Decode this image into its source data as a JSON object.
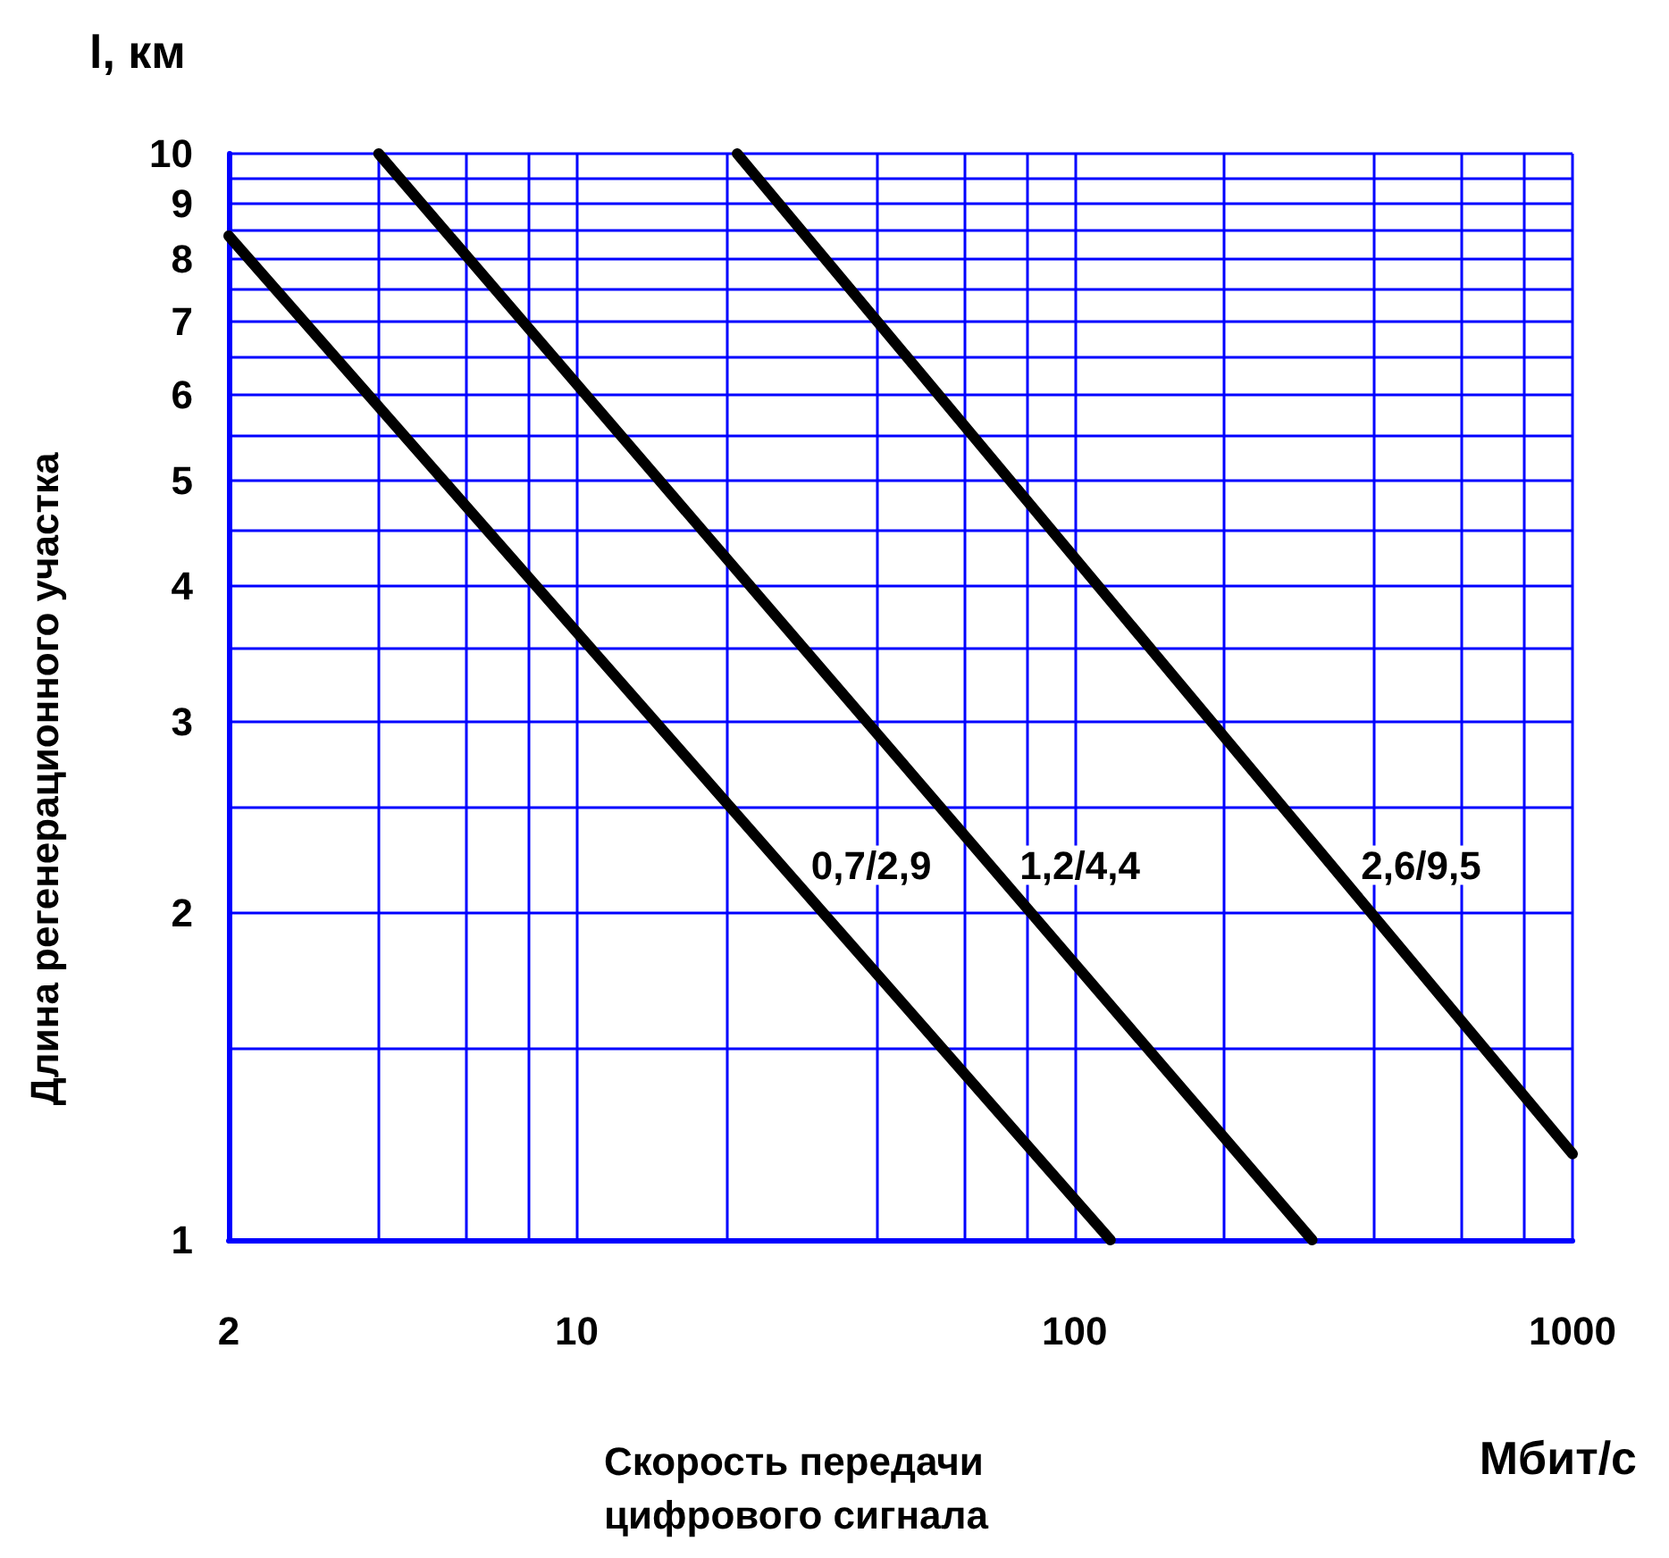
{
  "chart_data": {
    "type": "line",
    "xlabel": "Скорость передачи цифрового сигнала",
    "ylabel": "Длина регенерационного участка",
    "log": "xy",
    "grid": true,
    "marker": "none",
    "line_style": "solid",
    "series": [
      {
        "name": "0,7/2,9",
        "color": "#000000",
        "x": [
          2,
          118
        ],
        "values": [
          8.4,
          1
        ]
      },
      {
        "name": "1,2/4,4",
        "color": "#000000",
        "x": [
          4,
          300
        ],
        "values": [
          10,
          1
        ]
      },
      {
        "name": "2,6/9,5",
        "color": "#000000",
        "x": [
          21,
          1000
        ],
        "values": [
          10,
          1.2
        ]
      }
    ],
    "xlim": [
      2,
      1000
    ],
    "ylim": [
      1,
      10
    ],
    "xticks": [
      2,
      {
        "value": 4,
        "label": null
      },
      {
        "value": 6,
        "label": null
      },
      {
        "value": 8,
        "label": null
      },
      10,
      {
        "value": 20,
        "label": null
      },
      {
        "value": 40,
        "label": null
      },
      {
        "value": 60,
        "label": null
      },
      {
        "value": 80,
        "label": null
      },
      100,
      {
        "value": 200,
        "label": null
      },
      {
        "value": 400,
        "label": null
      },
      {
        "value": 600,
        "label": null
      },
      {
        "value": 800,
        "label": null
      },
      1000
    ],
    "yticks": [
      1,
      {
        "value": 1.5,
        "label": null
      },
      2,
      {
        "value": 2.5,
        "label": null
      },
      3,
      {
        "value": 3.5,
        "label": null
      },
      4,
      {
        "value": 4.5,
        "label": null
      },
      5,
      {
        "value": 5.5,
        "label": null
      },
      6,
      {
        "value": 6.5,
        "label": null
      },
      7,
      {
        "value": 7.5,
        "label": null
      },
      8,
      {
        "value": 8.5,
        "label": null
      },
      9,
      {
        "value": 9.5,
        "label": null
      },
      10
    ],
    "annotations": [
      "l, км",
      "Мбит/с"
    ]
  }
}
